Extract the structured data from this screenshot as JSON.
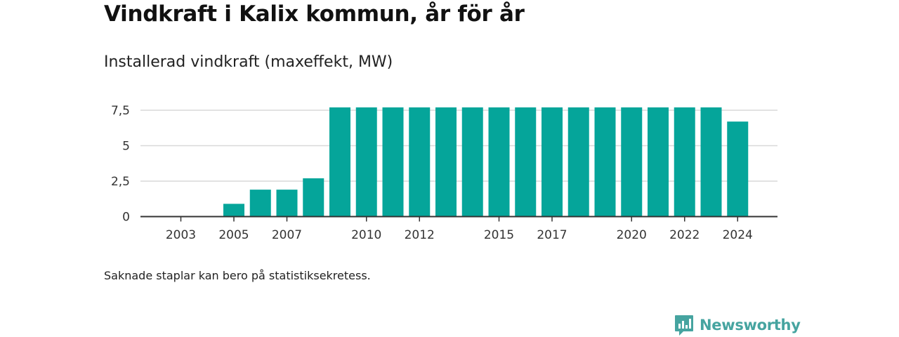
{
  "title": "Vindkraft i Kalix kommun, år för år",
  "subtitle": "Installerad vindkraft (maxeffekt, MW)",
  "note": "Saknade staplar kan bero på statistiksekretess.",
  "brand": {
    "name": "Newsworthy",
    "icon": "newsworthy-logo-icon"
  },
  "colors": {
    "bar": "#05a59a",
    "grid": "#d9d9d9",
    "axis": "#333333",
    "brand": "#46a4a0"
  },
  "chart_data": {
    "type": "bar",
    "title": "Vindkraft i Kalix kommun, år för år",
    "subtitle": "Installerad vindkraft (maxeffekt, MW)",
    "xlabel": "",
    "ylabel": "",
    "categories": [
      "2003",
      "2004",
      "2005",
      "2006",
      "2007",
      "2008",
      "2009",
      "2010",
      "2011",
      "2012",
      "2013",
      "2014",
      "2015",
      "2016",
      "2017",
      "2018",
      "2019",
      "2020",
      "2021",
      "2022",
      "2023",
      "2024"
    ],
    "x_tick_labels": [
      "2003",
      "2005",
      "2007",
      "2010",
      "2012",
      "2015",
      "2017",
      "2020",
      "2022",
      "2024"
    ],
    "values": [
      null,
      null,
      0.9,
      1.9,
      1.9,
      2.7,
      7.7,
      7.7,
      7.7,
      7.7,
      7.7,
      7.7,
      7.7,
      7.7,
      7.7,
      7.7,
      7.7,
      7.7,
      7.7,
      7.7,
      7.7,
      6.7
    ],
    "yticks": [
      0,
      2.5,
      5,
      7.5
    ],
    "ytick_labels": [
      "0",
      "2,5",
      "5",
      "7,5"
    ],
    "ylim": [
      0,
      7.5
    ],
    "grid": true,
    "legend": "none"
  }
}
